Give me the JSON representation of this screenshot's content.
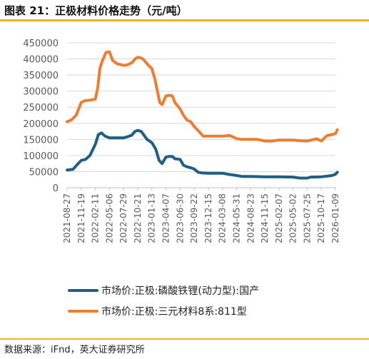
{
  "header": {
    "title": "图表 21：正极材料价格走势（元/吨）"
  },
  "footer": {
    "source": "数据来源：iFnd，英大证券研究所"
  },
  "colors": {
    "accent": "#f0b323",
    "lfp": "#1f5f86",
    "ncm": "#ed7d31"
  },
  "chart_data": {
    "type": "line",
    "title": "",
    "xlabel": "",
    "ylabel": "",
    "ylim": [
      0,
      450000
    ],
    "yticks": [
      "0",
      "50000",
      "100000",
      "150000",
      "200000",
      "250000",
      "300000",
      "350000",
      "400000",
      "450000"
    ],
    "xticks": [
      "2021-08-27",
      "2021-11-19",
      "2022-02-11",
      "2022-05-06",
      "2022-07-29",
      "2022-10-21",
      "2023-01-13",
      "2023-04-07",
      "2023-06-30",
      "2023-09-22",
      "2023-12-15",
      "2024-03-08",
      "2024-05-31",
      "2024-08-23",
      "2024-11-15",
      "2025-02-07",
      "2025-05-02",
      "2025-07-25",
      "2025-10-17",
      "2026-01-09"
    ],
    "legend_position": "bottom",
    "series": [
      {
        "name": "市场价:正极:磷酸铁锂(动力型):国产",
        "x": [
          "2021-08-27",
          "2021-10-01",
          "2021-11-01",
          "2021-11-19",
          "2021-12-15",
          "2022-01-10",
          "2022-02-11",
          "2022-03-01",
          "2022-03-20",
          "2022-04-10",
          "2022-05-06",
          "2022-05-25",
          "2022-06-20",
          "2022-07-29",
          "2022-08-20",
          "2022-09-15",
          "2022-10-05",
          "2022-10-21",
          "2022-11-10",
          "2022-11-25",
          "2022-12-15",
          "2023-01-13",
          "2023-02-05",
          "2023-02-25",
          "2023-03-15",
          "2023-04-07",
          "2023-04-25",
          "2023-05-15",
          "2023-05-30",
          "2023-06-30",
          "2023-07-20",
          "2023-08-10",
          "2023-09-01",
          "2023-09-22",
          "2023-10-15",
          "2023-11-05",
          "2023-12-15",
          "2024-01-20",
          "2024-03-08",
          "2024-04-10",
          "2024-05-31",
          "2024-07-01",
          "2024-08-23",
          "2024-11-15",
          "2025-02-07",
          "2025-05-02",
          "2025-06-10",
          "2025-07-25",
          "2025-08-15",
          "2025-10-17",
          "2025-11-20",
          "2025-12-20",
          "2026-01-09",
          "2026-01-20"
        ],
        "values": [
          55000,
          57000,
          75000,
          85000,
          88000,
          100000,
          135000,
          165000,
          170000,
          160000,
          155000,
          155000,
          155000,
          155000,
          158000,
          163000,
          175000,
          178000,
          175000,
          165000,
          150000,
          140000,
          120000,
          85000,
          75000,
          95000,
          97000,
          97000,
          90000,
          88000,
          70000,
          65000,
          62000,
          58000,
          48000,
          46000,
          45000,
          45000,
          45000,
          42000,
          38000,
          35000,
          35000,
          34000,
          34000,
          33000,
          30000,
          30000,
          33000,
          34000,
          36000,
          38000,
          42000,
          48000
        ]
      },
      {
        "name": "市场价:正极:三元材料8系:811型",
        "x": [
          "2021-08-27",
          "2021-09-20",
          "2021-10-20",
          "2021-11-19",
          "2021-12-10",
          "2022-01-10",
          "2022-02-11",
          "2022-02-25",
          "2022-03-10",
          "2022-03-25",
          "2022-04-15",
          "2022-05-06",
          "2022-05-25",
          "2022-06-20",
          "2022-07-29",
          "2022-08-25",
          "2022-09-20",
          "2022-10-05",
          "2022-10-21",
          "2022-11-10",
          "2022-11-25",
          "2022-12-15",
          "2023-01-13",
          "2023-01-30",
          "2023-02-15",
          "2023-03-01",
          "2023-03-15",
          "2023-04-07",
          "2023-04-25",
          "2023-05-15",
          "2023-05-30",
          "2023-06-30",
          "2023-07-20",
          "2023-08-10",
          "2023-09-01",
          "2023-09-22",
          "2023-10-20",
          "2023-11-15",
          "2023-12-15",
          "2024-01-20",
          "2024-03-08",
          "2024-04-20",
          "2024-05-10",
          "2024-05-31",
          "2024-07-01",
          "2024-08-23",
          "2024-10-01",
          "2024-11-15",
          "2025-01-01",
          "2025-02-07",
          "2025-03-01",
          "2025-05-02",
          "2025-06-10",
          "2025-07-25",
          "2025-08-20",
          "2025-09-20",
          "2025-10-17",
          "2025-11-20",
          "2025-12-20",
          "2026-01-09",
          "2026-01-20"
        ],
        "values": [
          205000,
          210000,
          225000,
          265000,
          270000,
          272000,
          275000,
          310000,
          370000,
          395000,
          420000,
          422000,
          395000,
          385000,
          380000,
          382000,
          390000,
          400000,
          405000,
          403000,
          398000,
          385000,
          370000,
          340000,
          300000,
          265000,
          258000,
          285000,
          287000,
          285000,
          265000,
          245000,
          225000,
          210000,
          205000,
          190000,
          175000,
          160000,
          160000,
          160000,
          160000,
          162000,
          158000,
          152000,
          150000,
          150000,
          150000,
          145000,
          145000,
          148000,
          148000,
          148000,
          146000,
          145000,
          148000,
          152000,
          145000,
          162000,
          165000,
          168000,
          180000
        ]
      }
    ]
  }
}
